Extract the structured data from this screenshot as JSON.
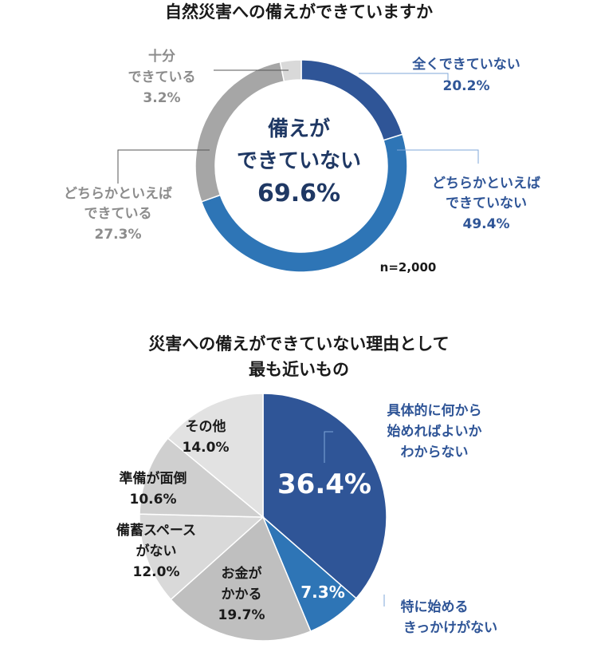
{
  "chart_data": [
    {
      "type": "pie",
      "title": "自然災害への備えができていますか",
      "center_label": [
        "備えが",
        "できていない",
        "69.6%"
      ],
      "note": "n=2,000",
      "slices": [
        {
          "label_lines": [
            "全くできていない"
          ],
          "value": 20.2,
          "value_text": "20.2%",
          "color": "#2f5597"
        },
        {
          "label_lines": [
            "どちらかといえば",
            "できていない"
          ],
          "value": 49.4,
          "value_text": "49.4%",
          "color": "#2e75b6"
        },
        {
          "label_lines": [
            "どちらかといえば",
            "できている"
          ],
          "value": 27.3,
          "value_text": "27.3%",
          "color": "#a6a6a6"
        },
        {
          "label_lines": [
            "十分",
            "できている"
          ],
          "value": 3.2,
          "value_text": "3.2%",
          "color": "#d9d9d9"
        }
      ]
    },
    {
      "type": "pie",
      "title": [
        "災害への備えができていない理由として",
        "最も近いもの"
      ],
      "slices": [
        {
          "label_lines": [
            "具体的に何から",
            "始めればよいか",
            "わからない"
          ],
          "value": 36.4,
          "value_text": "36.4%",
          "color": "#2f5597"
        },
        {
          "label_lines": [
            "特に始める",
            "きっかけがない"
          ],
          "value": 7.3,
          "value_text": "7.3%",
          "color": "#2e75b6"
        },
        {
          "label_lines": [
            "お金が",
            "かかる"
          ],
          "value": 19.7,
          "value_text": "19.7%",
          "color": "#bfbfbf"
        },
        {
          "label_lines": [
            "備蓄スペース",
            "がない"
          ],
          "value": 12.0,
          "value_text": "12.0%",
          "color": "#d9d9d9"
        },
        {
          "label_lines": [
            "準備が面倒"
          ],
          "value": 10.6,
          "value_text": "10.6%",
          "color": "#cfcfcf"
        },
        {
          "label_lines": [
            "その他"
          ],
          "value": 14.0,
          "value_text": "14.0%",
          "color": "#e2e2e2"
        }
      ]
    }
  ]
}
